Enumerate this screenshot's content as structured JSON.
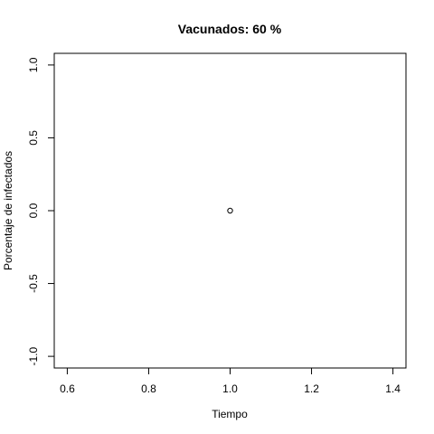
{
  "chart_data": {
    "type": "scatter",
    "title": "Vacunados:  60 %",
    "xlabel": "Tiempo",
    "ylabel": "Porcentaje de infectados",
    "xlim": [
      0.568,
      1.432
    ],
    "ylim": [
      -1.08,
      1.08
    ],
    "x_ticks": [
      0.6,
      0.8,
      1.0,
      1.2,
      1.4
    ],
    "x_tick_labels": [
      "0.6",
      "0.8",
      "1.0",
      "1.2",
      "1.4"
    ],
    "y_ticks": [
      -1.0,
      -0.5,
      0.0,
      0.5,
      1.0
    ],
    "y_tick_labels": [
      "-1.0",
      "-0.5",
      "0.0",
      "0.5",
      "1.0"
    ],
    "grid": false,
    "legend": "none",
    "points": [
      {
        "x": 1.0,
        "y": 0.0
      }
    ],
    "marker": "open-circle",
    "colors": {
      "foreground": "#000000",
      "background": "#ffffff"
    }
  }
}
